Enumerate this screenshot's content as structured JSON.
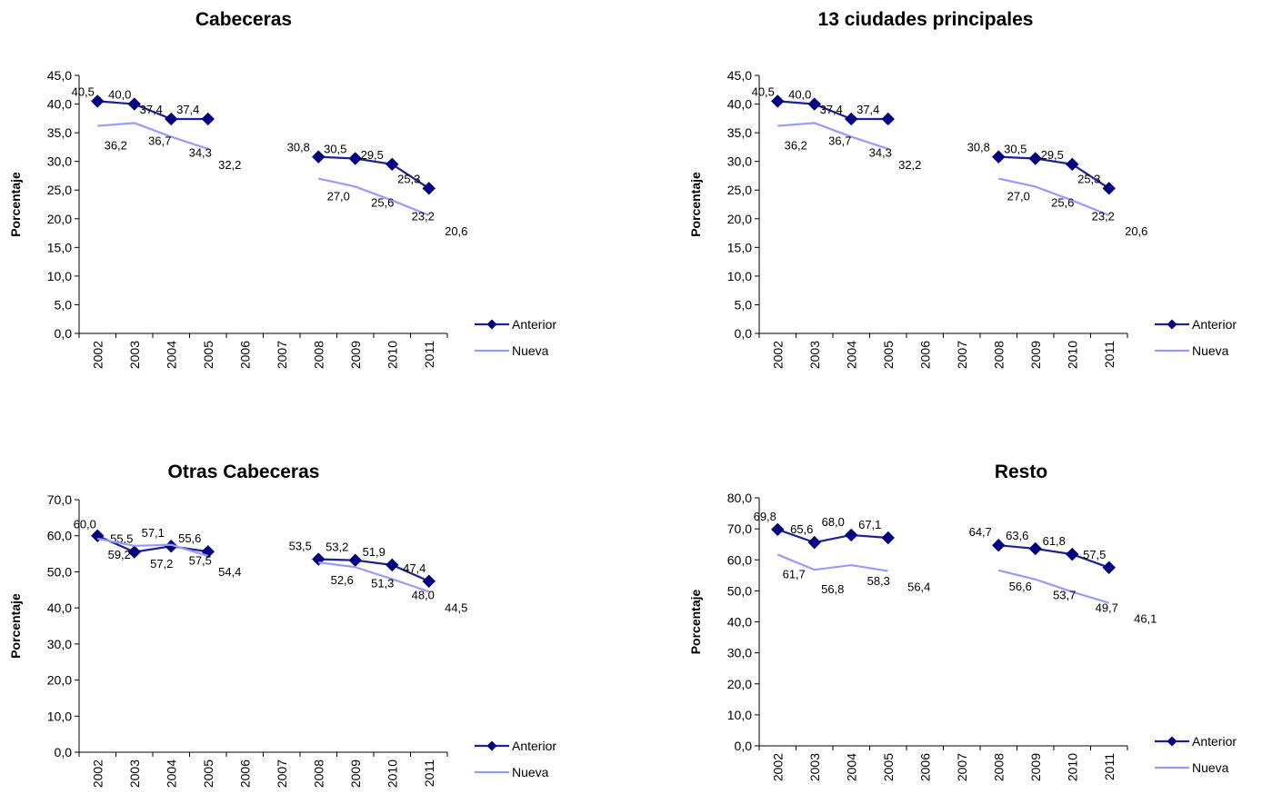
{
  "colors": {
    "anterior": "#1f1f8f",
    "anterior_marker": "#000080",
    "nueva": "#9999ff",
    "axis": "#000000"
  },
  "chart_data": [
    {
      "type": "line",
      "title": "Cabeceras",
      "ylabel": "Porcentaje",
      "xlabel": "",
      "ylim": [
        0,
        45
      ],
      "ytick_step": 5,
      "yticks": [
        "0,0",
        "5,0",
        "10,0",
        "15,0",
        "20,0",
        "25,0",
        "30,0",
        "35,0",
        "40,0",
        "45,0"
      ],
      "categories": [
        "2002",
        "2003",
        "2004",
        "2005",
        "2006",
        "2007",
        "2008",
        "2009",
        "2010",
        "2011"
      ],
      "legend": "right",
      "series": [
        {
          "name": "Anterior",
          "marker": "diamond",
          "values": [
            40.5,
            40.0,
            37.4,
            37.4,
            null,
            null,
            30.8,
            30.5,
            29.5,
            25.3
          ],
          "labels": [
            "40,5",
            "40,0",
            "37,4",
            "37,4",
            "",
            "",
            "30,8",
            "30,5",
            "29,5",
            "25,3"
          ]
        },
        {
          "name": "Nueva",
          "marker": "none",
          "values": [
            36.2,
            36.7,
            34.3,
            32.2,
            null,
            null,
            27.0,
            25.6,
            23.2,
            20.6
          ],
          "labels": [
            "36,2",
            "36,7",
            "34,3",
            "32,2",
            "",
            "",
            "27,0",
            "25,6",
            "23,2",
            "20,6"
          ]
        }
      ]
    },
    {
      "type": "line",
      "title": "13 ciudades principales",
      "ylabel": "Porcentaje",
      "xlabel": "",
      "ylim": [
        0,
        45
      ],
      "ytick_step": 5,
      "yticks": [
        "0,0",
        "5,0",
        "10,0",
        "15,0",
        "20,0",
        "25,0",
        "30,0",
        "35,0",
        "40,0",
        "45,0"
      ],
      "categories": [
        "2002",
        "2003",
        "2004",
        "2005",
        "2006",
        "2007",
        "2008",
        "2009",
        "2010",
        "2011"
      ],
      "legend": "right",
      "series": [
        {
          "name": "Anterior",
          "marker": "diamond",
          "values": [
            40.5,
            40.0,
            37.4,
            37.4,
            null,
            null,
            30.8,
            30.5,
            29.5,
            25.3
          ],
          "labels": [
            "40,5",
            "40,0",
            "37,4",
            "37,4",
            "",
            "",
            "30,8",
            "30,5",
            "29,5",
            "25,3"
          ]
        },
        {
          "name": "Nueva",
          "marker": "none",
          "values": [
            36.2,
            36.7,
            34.3,
            32.2,
            null,
            null,
            27.0,
            25.6,
            23.2,
            20.6
          ],
          "labels": [
            "36,2",
            "36,7",
            "34,3",
            "32,2",
            "",
            "",
            "27,0",
            "25,6",
            "23,2",
            "20,6"
          ]
        }
      ]
    },
    {
      "type": "line",
      "title": "Otras Cabeceras",
      "ylabel": "Porcentaje",
      "xlabel": "",
      "ylim": [
        0,
        70
      ],
      "ytick_step": 10,
      "yticks": [
        "0,0",
        "10,0",
        "20,0",
        "30,0",
        "40,0",
        "50,0",
        "60,0",
        "70,0"
      ],
      "categories": [
        "2002",
        "2003",
        "2004",
        "2005",
        "2006",
        "2007",
        "2008",
        "2009",
        "2010",
        "2011"
      ],
      "legend": "right",
      "series": [
        {
          "name": "Anterior",
          "marker": "diamond",
          "values": [
            60.0,
            55.5,
            57.1,
            55.6,
            null,
            null,
            53.5,
            53.2,
            51.9,
            47.4
          ],
          "labels": [
            "60,0",
            "55,5",
            "57,1",
            "55,6",
            "",
            "",
            "53,5",
            "53,2",
            "51,9",
            "47,4"
          ]
        },
        {
          "name": "Nueva",
          "marker": "none",
          "values": [
            59.2,
            57.2,
            57.5,
            54.4,
            null,
            null,
            52.6,
            51.3,
            48.0,
            44.5
          ],
          "labels": [
            "59,2",
            "57,2",
            "57,5",
            "54,4",
            "",
            "",
            "52,6",
            "51,3",
            "48,0",
            "44,5"
          ]
        }
      ]
    },
    {
      "type": "line",
      "title": "Resto",
      "ylabel": "Porcentaje",
      "xlabel": "",
      "ylim": [
        0,
        80
      ],
      "ytick_step": 10,
      "yticks": [
        "0,0",
        "10,0",
        "20,0",
        "30,0",
        "40,0",
        "50,0",
        "60,0",
        "70,0",
        "80,0"
      ],
      "categories": [
        "2002",
        "2003",
        "2004",
        "2005",
        "2006",
        "2007",
        "2008",
        "2009",
        "2010",
        "2011"
      ],
      "legend": "right",
      "series": [
        {
          "name": "Anterior",
          "marker": "diamond",
          "values": [
            69.8,
            65.6,
            68.0,
            67.1,
            null,
            null,
            64.7,
            63.6,
            61.8,
            57.5
          ],
          "labels": [
            "69,8",
            "65,6",
            "68,0",
            "67,1",
            "",
            "",
            "64,7",
            "63,6",
            "61,8",
            "57,5"
          ]
        },
        {
          "name": "Nueva",
          "marker": "none",
          "values": [
            61.7,
            56.8,
            58.3,
            56.4,
            null,
            null,
            56.6,
            53.7,
            49.7,
            46.1
          ],
          "labels": [
            "61,7",
            "56,8",
            "58,3",
            "56,4",
            "",
            "",
            "56,6",
            "53,7",
            "49,7",
            "46,1"
          ]
        }
      ]
    }
  ]
}
